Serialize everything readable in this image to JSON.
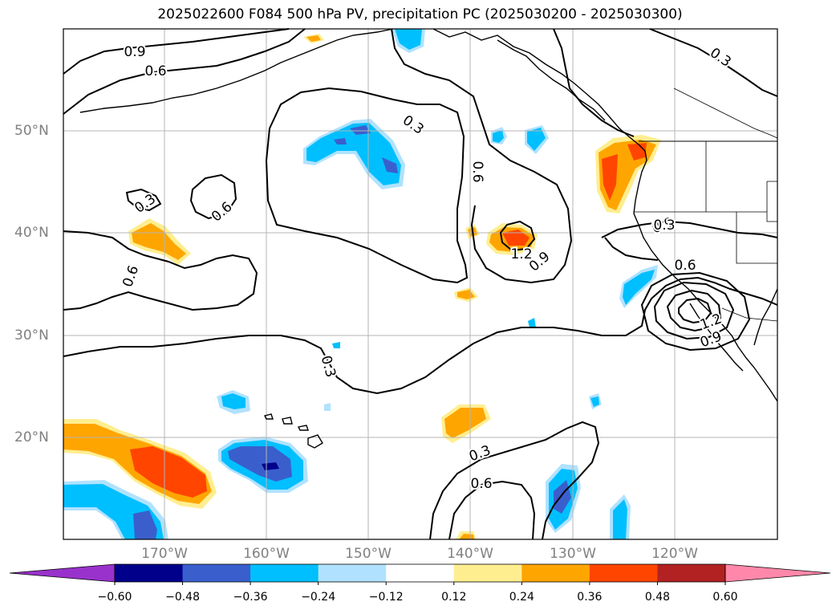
{
  "title": "2025022600 F084 500 hPa PV, precipitation PC (2025030200 - 2025030300)",
  "lon_labels": [
    "170°W",
    "160°W",
    "150°W",
    "140°W",
    "130°W",
    "120°W"
  ],
  "lat_labels": [
    "50°N",
    "40°N",
    "30°N",
    "20°N"
  ],
  "colorbar": {
    "ticks": [
      "−0.60",
      "−0.48",
      "−0.36",
      "−0.24",
      "−0.12",
      "0.12",
      "0.24",
      "0.36",
      "0.48",
      "0.60"
    ],
    "colors": [
      "#9932cc",
      "#00008b",
      "#3a5fcd",
      "#00bfff",
      "#b0e2ff",
      "#ffffff",
      "#ffee90",
      "#ffa500",
      "#ff4500",
      "#b22222",
      "#ff88aa"
    ]
  },
  "contour_labels": [
    "0.9",
    "0.6",
    "0.3",
    "0.3",
    "0.6",
    "0.3",
    "0.6",
    "0.9",
    "1.2",
    "0.9",
    "0.3",
    "0.3",
    "0.6",
    "0.9",
    "1.2",
    "0.3",
    "0.6",
    "0.6"
  ],
  "colors": {
    "coast": "#000000",
    "grid": "#b4b4b4",
    "contour": "#000000"
  }
}
